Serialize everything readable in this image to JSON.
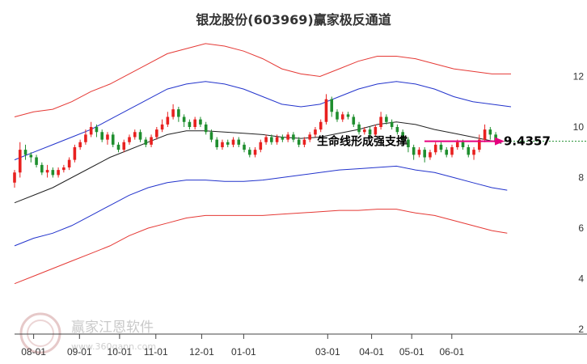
{
  "chart_data": {
    "type": "candlestick",
    "title": "银龙股份(603969)赢家极反通道",
    "x_ticks": [
      "08-01",
      "09-01",
      "10-01",
      "11-01",
      "12-01",
      "01-01",
      "03-01",
      "04-01",
      "05-01",
      "06-01"
    ],
    "y_ticks": [
      2,
      4,
      6,
      8,
      10,
      12
    ],
    "ylim": [
      2,
      13.2
    ],
    "grid": false,
    "annotation": "生命线形成强支撑",
    "current_price": "9.4357",
    "current_price_value": 9.4357,
    "colors": {
      "up": "#e8201f",
      "down": "#1f8e2e",
      "outer_band": "#e53935",
      "inner_band": "#2233cc",
      "lifeline": "#222222",
      "arrow": "#e6007e",
      "price_line": "#1f8e2e"
    },
    "series": [
      {
        "key": "outer_upper",
        "points": [
          [
            0,
            10.4
          ],
          [
            10,
            10.6
          ],
          [
            20,
            10.7
          ],
          [
            30,
            11.0
          ],
          [
            40,
            11.4
          ],
          [
            50,
            11.7
          ],
          [
            60,
            12.1
          ],
          [
            70,
            12.5
          ],
          [
            80,
            12.9
          ],
          [
            90,
            13.1
          ],
          [
            100,
            13.3
          ],
          [
            110,
            13.2
          ],
          [
            120,
            13.0
          ],
          [
            130,
            12.7
          ],
          [
            140,
            12.3
          ],
          [
            150,
            12.1
          ],
          [
            160,
            12.0
          ],
          [
            170,
            12.3
          ],
          [
            180,
            12.6
          ],
          [
            190,
            12.8
          ],
          [
            200,
            12.8
          ],
          [
            210,
            12.7
          ],
          [
            220,
            12.5
          ],
          [
            230,
            12.3
          ],
          [
            240,
            12.2
          ],
          [
            250,
            12.1
          ],
          [
            260,
            12.1
          ]
        ]
      },
      {
        "key": "inner_upper",
        "points": [
          [
            0,
            8.7
          ],
          [
            10,
            9.0
          ],
          [
            20,
            9.3
          ],
          [
            30,
            9.6
          ],
          [
            40,
            9.9
          ],
          [
            50,
            10.3
          ],
          [
            60,
            10.7
          ],
          [
            70,
            11.1
          ],
          [
            80,
            11.5
          ],
          [
            90,
            11.7
          ],
          [
            100,
            11.8
          ],
          [
            110,
            11.7
          ],
          [
            120,
            11.5
          ],
          [
            130,
            11.2
          ],
          [
            140,
            10.9
          ],
          [
            150,
            10.8
          ],
          [
            160,
            10.9
          ],
          [
            170,
            11.2
          ],
          [
            180,
            11.5
          ],
          [
            190,
            11.7
          ],
          [
            200,
            11.8
          ],
          [
            210,
            11.7
          ],
          [
            220,
            11.5
          ],
          [
            230,
            11.2
          ],
          [
            240,
            11.0
          ],
          [
            250,
            10.9
          ],
          [
            260,
            10.8
          ]
        ]
      },
      {
        "key": "lifeline",
        "points": [
          [
            0,
            7.0
          ],
          [
            10,
            7.3
          ],
          [
            20,
            7.6
          ],
          [
            30,
            8.0
          ],
          [
            40,
            8.4
          ],
          [
            50,
            8.8
          ],
          [
            60,
            9.1
          ],
          [
            70,
            9.4
          ],
          [
            80,
            9.7
          ],
          [
            90,
            9.85
          ],
          [
            100,
            9.85
          ],
          [
            110,
            9.8
          ],
          [
            120,
            9.75
          ],
          [
            130,
            9.7
          ],
          [
            140,
            9.6
          ],
          [
            150,
            9.55
          ],
          [
            160,
            9.6
          ],
          [
            170,
            9.75
          ],
          [
            180,
            9.9
          ],
          [
            190,
            10.1
          ],
          [
            200,
            10.2
          ],
          [
            210,
            10.1
          ],
          [
            220,
            9.9
          ],
          [
            230,
            9.75
          ],
          [
            240,
            9.6
          ],
          [
            250,
            9.45
          ],
          [
            255,
            9.35
          ]
        ]
      },
      {
        "key": "inner_lower",
        "points": [
          [
            0,
            5.3
          ],
          [
            10,
            5.6
          ],
          [
            20,
            5.8
          ],
          [
            30,
            6.1
          ],
          [
            40,
            6.5
          ],
          [
            50,
            6.9
          ],
          [
            60,
            7.3
          ],
          [
            70,
            7.6
          ],
          [
            80,
            7.8
          ],
          [
            90,
            7.9
          ],
          [
            100,
            7.9
          ],
          [
            110,
            7.85
          ],
          [
            120,
            7.85
          ],
          [
            130,
            7.9
          ],
          [
            140,
            8.0
          ],
          [
            150,
            8.1
          ],
          [
            160,
            8.2
          ],
          [
            170,
            8.3
          ],
          [
            180,
            8.35
          ],
          [
            190,
            8.4
          ],
          [
            200,
            8.45
          ],
          [
            210,
            8.3
          ],
          [
            220,
            8.2
          ],
          [
            230,
            8.0
          ],
          [
            240,
            7.8
          ],
          [
            250,
            7.6
          ],
          [
            258,
            7.5
          ]
        ]
      },
      {
        "key": "outer_lower",
        "points": [
          [
            0,
            3.8
          ],
          [
            10,
            4.1
          ],
          [
            20,
            4.4
          ],
          [
            30,
            4.7
          ],
          [
            40,
            5.0
          ],
          [
            50,
            5.3
          ],
          [
            60,
            5.7
          ],
          [
            70,
            6.0
          ],
          [
            80,
            6.2
          ],
          [
            90,
            6.4
          ],
          [
            100,
            6.5
          ],
          [
            110,
            6.5
          ],
          [
            120,
            6.5
          ],
          [
            130,
            6.5
          ],
          [
            140,
            6.55
          ],
          [
            150,
            6.6
          ],
          [
            160,
            6.65
          ],
          [
            170,
            6.7
          ],
          [
            180,
            6.7
          ],
          [
            190,
            6.75
          ],
          [
            200,
            6.75
          ],
          [
            210,
            6.6
          ],
          [
            220,
            6.5
          ],
          [
            230,
            6.3
          ],
          [
            240,
            6.1
          ],
          [
            250,
            5.9
          ],
          [
            258,
            5.8
          ]
        ]
      }
    ],
    "candles": [
      [
        0,
        7.8,
        8.2,
        7.6,
        8.3
      ],
      [
        1,
        8.2,
        9.1,
        8.0,
        9.4
      ],
      [
        2,
        9.1,
        8.9,
        8.7,
        9.3
      ],
      [
        3,
        8.9,
        8.8,
        8.6,
        9.0
      ],
      [
        4,
        8.8,
        8.5,
        8.4,
        8.9
      ],
      [
        5,
        8.5,
        8.2,
        8.1,
        8.6
      ],
      [
        6,
        8.2,
        8.3,
        8.0,
        8.5
      ],
      [
        7,
        8.3,
        8.1,
        8.0,
        8.4
      ],
      [
        8,
        8.1,
        8.3,
        8.0,
        8.4
      ],
      [
        9,
        8.3,
        8.4,
        8.2,
        8.5
      ],
      [
        10,
        8.4,
        8.7,
        8.3,
        8.8
      ],
      [
        11,
        8.7,
        9.2,
        8.6,
        9.3
      ],
      [
        12,
        9.2,
        9.4,
        9.1,
        9.5
      ],
      [
        13,
        9.4,
        9.7,
        9.3,
        9.9
      ],
      [
        14,
        9.7,
        10.0,
        9.6,
        10.2
      ],
      [
        15,
        10.0,
        9.8,
        9.6,
        10.1
      ],
      [
        16,
        9.8,
        9.5,
        9.4,
        9.9
      ],
      [
        17,
        9.5,
        9.7,
        9.3,
        9.8
      ],
      [
        18,
        9.7,
        9.3,
        9.2,
        9.8
      ],
      [
        19,
        9.3,
        9.1,
        9.0,
        9.4
      ],
      [
        20,
        9.1,
        9.4,
        9.0,
        9.5
      ],
      [
        21,
        9.4,
        9.6,
        9.3,
        9.7
      ],
      [
        22,
        9.6,
        9.8,
        9.5,
        9.9
      ],
      [
        23,
        9.8,
        9.5,
        9.4,
        9.9
      ],
      [
        24,
        9.5,
        9.3,
        9.2,
        9.6
      ],
      [
        25,
        9.3,
        9.6,
        9.2,
        9.7
      ],
      [
        26,
        9.6,
        9.9,
        9.5,
        10.0
      ],
      [
        27,
        9.9,
        10.1,
        9.8,
        10.3
      ],
      [
        28,
        10.1,
        10.4,
        10.0,
        10.6
      ],
      [
        29,
        10.4,
        10.7,
        10.3,
        10.9
      ],
      [
        30,
        10.7,
        10.4,
        10.2,
        10.8
      ],
      [
        31,
        10.4,
        10.2,
        10.0,
        10.5
      ],
      [
        32,
        10.2,
        10.0,
        9.9,
        10.3
      ],
      [
        33,
        10.0,
        10.3,
        9.9,
        10.4
      ],
      [
        34,
        10.3,
        10.1,
        10.0,
        10.4
      ],
      [
        35,
        10.1,
        9.8,
        9.7,
        10.2
      ],
      [
        36,
        9.8,
        9.5,
        9.4,
        9.9
      ],
      [
        37,
        9.5,
        9.2,
        9.1,
        9.6
      ],
      [
        38,
        9.2,
        9.4,
        9.1,
        9.5
      ],
      [
        39,
        9.4,
        9.3,
        9.2,
        9.5
      ],
      [
        40,
        9.3,
        9.5,
        9.2,
        9.6
      ],
      [
        41,
        9.5,
        9.3,
        9.2,
        9.6
      ],
      [
        42,
        9.3,
        9.1,
        9.0,
        9.4
      ],
      [
        43,
        9.1,
        8.9,
        8.8,
        9.2
      ],
      [
        44,
        8.9,
        9.1,
        8.8,
        9.2
      ],
      [
        45,
        9.1,
        9.4,
        9.0,
        9.5
      ],
      [
        46,
        9.4,
        9.6,
        9.3,
        9.7
      ],
      [
        47,
        9.6,
        9.4,
        9.3,
        9.7
      ],
      [
        48,
        9.4,
        9.6,
        9.3,
        9.7
      ],
      [
        49,
        9.6,
        9.5,
        9.4,
        9.7
      ],
      [
        50,
        9.5,
        9.7,
        9.4,
        9.8
      ],
      [
        51,
        9.7,
        9.5,
        9.4,
        9.8
      ],
      [
        52,
        9.5,
        9.3,
        9.2,
        9.6
      ],
      [
        53,
        9.3,
        9.5,
        9.2,
        9.6
      ],
      [
        54,
        9.5,
        9.7,
        9.4,
        9.8
      ],
      [
        55,
        9.7,
        9.9,
        9.6,
        10.0
      ],
      [
        56,
        9.9,
        10.2,
        9.8,
        10.3
      ],
      [
        57,
        10.2,
        11.1,
        10.1,
        11.3
      ],
      [
        58,
        11.1,
        10.6,
        10.4,
        11.2
      ],
      [
        59,
        10.6,
        10.3,
        10.2,
        10.7
      ],
      [
        60,
        10.3,
        10.5,
        10.2,
        10.6
      ],
      [
        61,
        10.5,
        10.4,
        10.3,
        10.6
      ],
      [
        62,
        10.4,
        10.1,
        10.0,
        10.5
      ],
      [
        63,
        10.1,
        9.8,
        9.7,
        10.2
      ],
      [
        64,
        9.8,
        9.9,
        9.7,
        10.0
      ],
      [
        65,
        9.9,
        9.7,
        9.6,
        10.0
      ],
      [
        66,
        9.7,
        10.0,
        9.6,
        10.1
      ],
      [
        67,
        10.0,
        10.4,
        9.9,
        10.6
      ],
      [
        68,
        10.4,
        10.2,
        10.1,
        10.5
      ],
      [
        69,
        10.2,
        10.0,
        9.9,
        10.3
      ],
      [
        70,
        10.0,
        9.8,
        9.7,
        10.1
      ],
      [
        71,
        9.8,
        9.5,
        9.3,
        9.9
      ],
      [
        72,
        9.5,
        9.2,
        9.0,
        9.6
      ],
      [
        73,
        9.2,
        8.9,
        8.7,
        9.3
      ],
      [
        74,
        8.9,
        9.1,
        8.8,
        9.2
      ],
      [
        75,
        9.1,
        8.8,
        8.6,
        9.2
      ],
      [
        76,
        8.8,
        9.0,
        8.7,
        9.1
      ],
      [
        77,
        9.0,
        9.3,
        8.9,
        9.4
      ],
      [
        78,
        9.3,
        9.1,
        9.0,
        9.4
      ],
      [
        79,
        9.1,
        8.9,
        8.8,
        9.2
      ],
      [
        80,
        8.9,
        9.2,
        8.8,
        9.3
      ],
      [
        81,
        9.2,
        9.4,
        9.1,
        9.5
      ],
      [
        82,
        9.4,
        9.2,
        9.1,
        9.5
      ],
      [
        83,
        9.2,
        8.9,
        8.8,
        9.3
      ],
      [
        84,
        8.9,
        9.1,
        8.7,
        9.2
      ],
      [
        85,
        9.1,
        9.5,
        9.0,
        9.7
      ],
      [
        86,
        9.5,
        9.9,
        9.4,
        10.1
      ],
      [
        87,
        9.9,
        9.7,
        9.5,
        10.0
      ],
      [
        88,
        9.7,
        9.4,
        9.3,
        9.8
      ]
    ]
  }
}
